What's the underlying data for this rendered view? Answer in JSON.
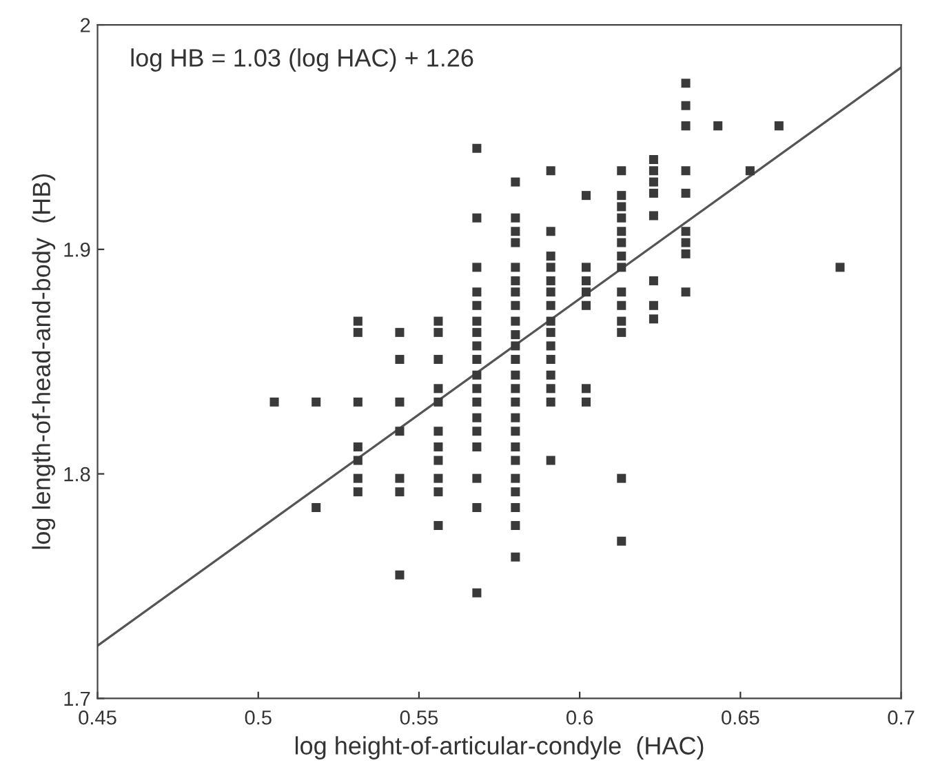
{
  "chart_data": {
    "type": "scatter",
    "xlabel": "log height-of-articular-condyle  (HAC)",
    "ylabel": "log length-of-head-and-body  (HB)",
    "annotations": [
      "log HB = 1.03 (log HAC) + 1.26"
    ],
    "xlim": [
      0.45,
      0.7
    ],
    "ylim": [
      1.7,
      2
    ],
    "xticks": [
      0.45,
      0.5,
      0.55,
      0.6,
      0.65,
      0.7
    ],
    "yticks": [
      1.7,
      1.8,
      1.9,
      2
    ],
    "grid": false,
    "series": [
      {
        "marker": "square",
        "color": "#3a3a3a",
        "x": [
          0.505,
          0.518,
          0.518,
          0.531,
          0.531,
          0.531,
          0.531,
          0.531,
          0.531,
          0.531,
          0.544,
          0.544,
          0.544,
          0.544,
          0.544,
          0.544,
          0.544,
          0.556,
          0.556,
          0.556,
          0.556,
          0.556,
          0.556,
          0.556,
          0.556,
          0.556,
          0.556,
          0.556,
          0.568,
          0.568,
          0.568,
          0.568,
          0.568,
          0.568,
          0.568,
          0.568,
          0.568,
          0.568,
          0.568,
          0.568,
          0.568,
          0.568,
          0.568,
          0.568,
          0.568,
          0.568,
          0.58,
          0.58,
          0.58,
          0.58,
          0.58,
          0.58,
          0.58,
          0.58,
          0.58,
          0.58,
          0.58,
          0.58,
          0.58,
          0.58,
          0.58,
          0.58,
          0.58,
          0.58,
          0.58,
          0.58,
          0.58,
          0.58,
          0.58,
          0.58,
          0.591,
          0.591,
          0.591,
          0.591,
          0.591,
          0.591,
          0.591,
          0.591,
          0.591,
          0.591,
          0.591,
          0.591,
          0.591,
          0.591,
          0.591,
          0.602,
          0.602,
          0.602,
          0.602,
          0.602,
          0.602,
          0.602,
          0.613,
          0.613,
          0.613,
          0.613,
          0.613,
          0.613,
          0.613,
          0.613,
          0.613,
          0.613,
          0.613,
          0.613,
          0.613,
          0.613,
          0.623,
          0.623,
          0.623,
          0.623,
          0.623,
          0.623,
          0.623,
          0.623,
          0.633,
          0.633,
          0.633,
          0.633,
          0.633,
          0.633,
          0.633,
          0.633,
          0.633,
          0.643,
          0.653,
          0.662,
          0.681
        ],
        "values": [
          1.832,
          1.832,
          1.785,
          1.868,
          1.863,
          1.832,
          1.812,
          1.806,
          1.798,
          1.792,
          1.863,
          1.851,
          1.832,
          1.819,
          1.798,
          1.792,
          1.755,
          1.868,
          1.863,
          1.851,
          1.838,
          1.832,
          1.819,
          1.812,
          1.806,
          1.798,
          1.792,
          1.777,
          1.945,
          1.914,
          1.892,
          1.881,
          1.875,
          1.868,
          1.863,
          1.857,
          1.851,
          1.844,
          1.838,
          1.832,
          1.825,
          1.819,
          1.812,
          1.798,
          1.785,
          1.747,
          1.93,
          1.914,
          1.908,
          1.903,
          1.892,
          1.886,
          1.881,
          1.875,
          1.868,
          1.862,
          1.857,
          1.851,
          1.844,
          1.838,
          1.832,
          1.825,
          1.819,
          1.812,
          1.806,
          1.798,
          1.792,
          1.785,
          1.777,
          1.763,
          1.935,
          1.908,
          1.897,
          1.892,
          1.886,
          1.881,
          1.875,
          1.868,
          1.863,
          1.857,
          1.851,
          1.844,
          1.838,
          1.832,
          1.806,
          1.924,
          1.892,
          1.886,
          1.881,
          1.875,
          1.838,
          1.832,
          1.935,
          1.924,
          1.919,
          1.914,
          1.908,
          1.903,
          1.897,
          1.892,
          1.881,
          1.875,
          1.868,
          1.863,
          1.798,
          1.77,
          1.94,
          1.935,
          1.93,
          1.925,
          1.915,
          1.886,
          1.875,
          1.869,
          1.974,
          1.964,
          1.955,
          1.935,
          1.925,
          1.908,
          1.903,
          1.898,
          1.881,
          1.955,
          1.935,
          1.955,
          1.892
        ]
      },
      {
        "type": "line",
        "marker": "none",
        "line_style": "solid",
        "color": "#555555",
        "x": [
          0.45,
          0.7
        ],
        "values": [
          1.7235,
          1.981
        ]
      }
    ]
  }
}
